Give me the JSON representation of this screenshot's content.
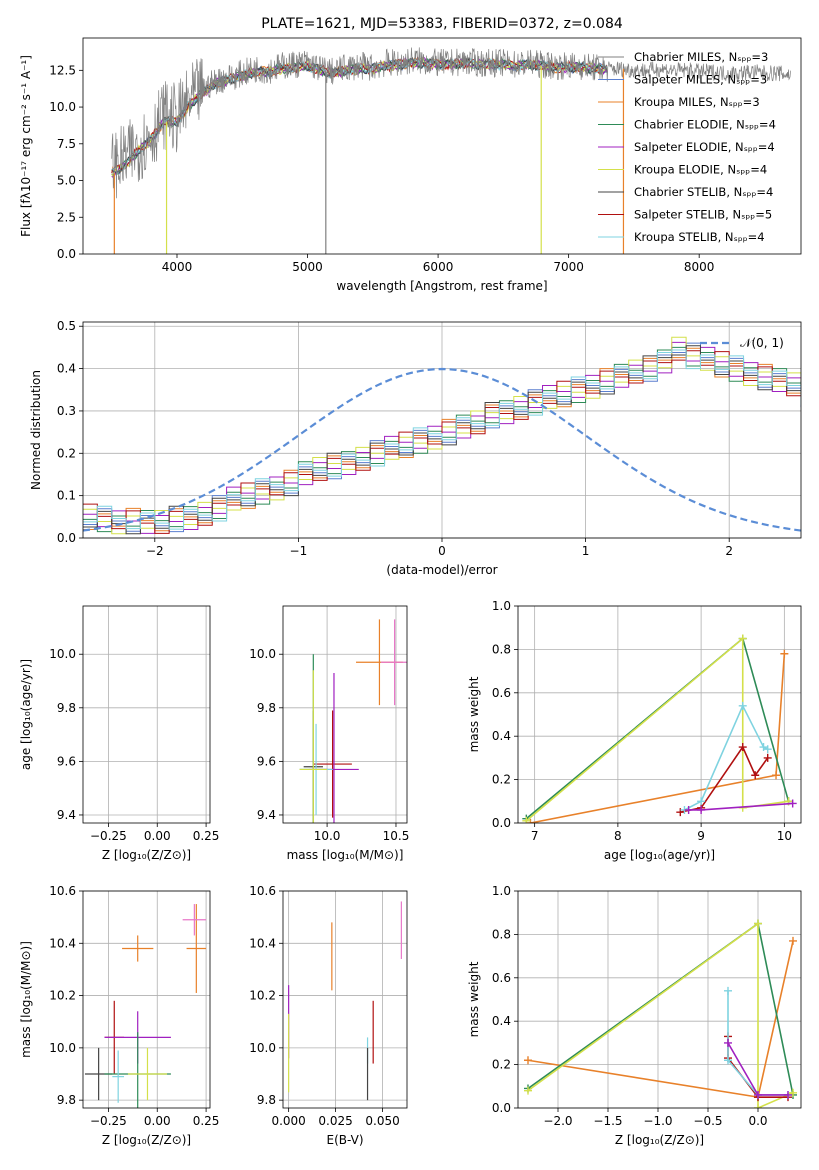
{
  "colors": {
    "grey": "#808080",
    "blue": "#5b7fcf",
    "orange": "#e8812a",
    "green": "#2e8b57",
    "purple": "#a020c0",
    "yellow": "#d4e04a",
    "dark": "#444444",
    "red": "#b01010",
    "cyan": "#7fd3e0",
    "pink": "#e877c8",
    "gauss": "#5b8dd6"
  },
  "spectrum": {
    "title": "PLATE=1621, MJD=53383, FIBERID=0372, z=0.084",
    "xlabel": "wavelength [Angstrom, rest frame]",
    "ylabel": "Flux [fλ10⁻¹⁷ erg cm⁻² s⁻¹ A⁻¹]",
    "xticks": [
      "4000",
      "5000",
      "6000",
      "7000",
      "8000"
    ],
    "yticks": [
      "0.0",
      "2.5",
      "5.0",
      "7.5",
      "10.0",
      "12.5"
    ],
    "legend": [
      {
        "label": "Chabrier MILES, Nₛₚₚ=3",
        "color": "grey"
      },
      {
        "label": "Salpeter MILES, Nₛₚₚ=3",
        "color": "blue"
      },
      {
        "label": "Kroupa MILES, Nₛₚₚ=3",
        "color": "orange"
      },
      {
        "label": "Chabrier ELODIE, Nₛₚₚ=4",
        "color": "green"
      },
      {
        "label": "Salpeter ELODIE, Nₛₚₚ=4",
        "color": "purple"
      },
      {
        "label": "Kroupa ELODIE, Nₛₚₚ=4",
        "color": "yellow"
      },
      {
        "label": "Chabrier STELIB, Nₛₚₚ=4",
        "color": "dark"
      },
      {
        "label": "Salpeter STELIB, Nₛₚₚ=5",
        "color": "red"
      },
      {
        "label": "Kroupa STELIB, Nₛₚₚ=4",
        "color": "cyan"
      }
    ]
  },
  "hist": {
    "xlabel": "(data-model)/error",
    "ylabel": "Normed distribution",
    "xticks": [
      "−2",
      "−1",
      "0",
      "1",
      "2"
    ],
    "yticks": [
      "0.0",
      "0.1",
      "0.2",
      "0.3",
      "0.4",
      "0.5"
    ],
    "legend": "𝒩(0, 1)"
  },
  "panels": {
    "p3": {
      "xlabel": "Z [log₁₀(Z/Z⊙)]",
      "ylabel": "age  [log₁₀(age/yr)]",
      "xticks": [
        "−0.25",
        "0.00",
        "0.25"
      ],
      "yticks": [
        "9.4",
        "9.6",
        "9.8",
        "10.0"
      ]
    },
    "p4": {
      "xlabel": "mass [log₁₀(M/M⊙)]",
      "xticks": [
        "10.0",
        "10.5"
      ],
      "yticks": [
        "9.4",
        "9.6",
        "9.8",
        "10.0"
      ]
    },
    "p5": {
      "xlabel": "age  [log₁₀(age/yr)]",
      "ylabel": "mass weight",
      "xticks": [
        "7",
        "8",
        "9",
        "10"
      ],
      "yticks": [
        "0.0",
        "0.2",
        "0.4",
        "0.6",
        "0.8",
        "1.0"
      ]
    },
    "p6": {
      "xlabel": "Z [log₁₀(Z/Z⊙)]",
      "ylabel": "mass [log₁₀(M/M⊙)]",
      "xticks": [
        "−0.25",
        "0.00",
        "0.25"
      ],
      "yticks": [
        "9.8",
        "10.0",
        "10.2",
        "10.4",
        "10.6"
      ]
    },
    "p7": {
      "xlabel": "E(B-V)",
      "xticks": [
        "0.000",
        "0.025",
        "0.050"
      ],
      "yticks": [
        "9.8",
        "10.0",
        "10.2",
        "10.4",
        "10.6"
      ]
    },
    "p8": {
      "xlabel": "Z [log₁₀(Z/Z⊙)]",
      "ylabel": "mass weight",
      "xticks": [
        "−2.0",
        "−1.5",
        "−1.0",
        "−0.5",
        "0.0"
      ],
      "yticks": [
        "0.0",
        "0.2",
        "0.4",
        "0.6",
        "0.8",
        "1.0"
      ]
    }
  },
  "chart_data": [
    {
      "type": "line",
      "title": "PLATE=1621, MJD=53383, FIBERID=0372, z=0.084",
      "xlabel": "wavelength [Angstrom, rest frame]",
      "xlim": [
        3280,
        8780
      ],
      "ylim": [
        0,
        14.7
      ],
      "x": [
        3500,
        3600,
        3700,
        3800,
        3900,
        4000,
        4100,
        4200,
        4300,
        4400,
        4500,
        4600,
        4700,
        4800,
        4900,
        5000,
        5100,
        5200,
        5300,
        5400,
        5500,
        5600,
        5700,
        5800,
        5900,
        6000,
        6100,
        6200,
        6300,
        6400,
        6500,
        6600,
        6700,
        6800,
        6900,
        7000,
        7100,
        7200,
        7300,
        7400,
        7500,
        7600,
        7700,
        7800,
        7900,
        8000,
        8100,
        8200,
        8300,
        8400,
        8500,
        8600,
        8700
      ],
      "series": [
        {
          "name": "data",
          "color": "grey",
          "values": [
            6.0,
            6.5,
            7.2,
            8.0,
            9.5,
            9.2,
            10.5,
            11.2,
            11.8,
            12.0,
            12.3,
            12.6,
            12.5,
            12.8,
            12.9,
            13.0,
            12.6,
            12.4,
            12.7,
            12.8,
            12.7,
            13.0,
            13.0,
            13.2,
            13.1,
            13.0,
            13.0,
            13.1,
            13.0,
            13.0,
            13.0,
            12.9,
            13.0,
            12.9,
            12.8,
            12.8,
            12.8,
            12.7,
            12.6,
            12.6,
            12.5,
            12.5,
            12.6,
            12.5,
            12.5,
            12.4,
            12.4,
            12.3,
            12.3,
            12.4,
            12.3,
            12.3,
            12.2
          ]
        },
        {
          "name": "model",
          "color": "cyan",
          "values": [
            5.5,
            6.0,
            7.0,
            7.8,
            9.0,
            9.0,
            10.2,
            11.0,
            11.6,
            11.9,
            12.1,
            12.4,
            12.4,
            12.6,
            12.7,
            12.8,
            12.5,
            12.3,
            12.5,
            12.6,
            12.6,
            12.8,
            12.9,
            13.0,
            13.0,
            12.9,
            12.9,
            13.0,
            12.9,
            12.9,
            12.9,
            12.8,
            12.9,
            12.8,
            12.7,
            12.7,
            12.7,
            12.6,
            12.6,
            null,
            null,
            null,
            null,
            null,
            null,
            null,
            null,
            null,
            null,
            null,
            null,
            null,
            null
          ]
        }
      ]
    },
    {
      "type": "bar",
      "xlabel": "(data-model)/error",
      "ylabel": "Normed distribution",
      "xlim": [
        -2.5,
        2.5
      ],
      "ylim": [
        0,
        0.51
      ],
      "bin_width": 0.1,
      "bin_start": -2.5,
      "values": [
        0.05,
        0.045,
        0.04,
        0.04,
        0.035,
        0.035,
        0.045,
        0.05,
        0.06,
        0.07,
        0.09,
        0.1,
        0.11,
        0.12,
        0.13,
        0.15,
        0.16,
        0.17,
        0.18,
        0.19,
        0.2,
        0.21,
        0.22,
        0.23,
        0.24,
        0.25,
        0.26,
        0.27,
        0.29,
        0.3,
        0.31,
        0.32,
        0.33,
        0.34,
        0.35,
        0.36,
        0.37,
        0.38,
        0.39,
        0.4,
        0.42,
        0.45,
        0.43,
        0.42,
        0.41,
        0.4,
        0.39,
        0.38,
        0.37,
        0.36,
        0.34,
        0.32,
        0.3,
        0.29,
        0.27,
        0.26,
        0.24,
        0.23,
        0.21,
        0.2,
        0.19,
        0.17,
        0.16,
        0.15,
        0.14,
        0.13,
        0.12,
        0.11,
        0.1,
        0.09,
        0.08,
        0.075,
        0.07,
        0.065,
        0.06,
        0.055,
        0.05,
        0.05,
        0.045,
        0.045,
        0.04,
        0.04,
        0.04,
        0.035,
        0.035,
        0.035,
        0.03,
        0.03,
        0.03,
        0.03,
        0.03,
        0.03,
        0.03,
        0.03,
        0.03,
        0.03,
        0.03,
        0.03,
        0.03,
        0.03
      ],
      "gaussian": {
        "mean": 0,
        "sigma": 1,
        "name": "𝒩(0, 1)"
      }
    },
    {
      "type": "scatter",
      "xlabel": "Z [log₁₀(Z/Z⊙)]",
      "ylabel": "age  [log₁₀(age/yr)]",
      "xlim": [
        -0.38,
        0.27
      ],
      "ylim": [
        9.37,
        10.18
      ],
      "points": [
        {
          "x": 0.2,
          "y": 9.97,
          "xerr": 0.04,
          "yerr": 0.13,
          "color": "orange"
        },
        {
          "x": 0.19,
          "y": 9.97,
          "xerr": 0.03,
          "yerr": 0.1,
          "color": "pink"
        },
        {
          "x": -0.22,
          "y": 9.59,
          "xerr": 0.04,
          "yerr": 0.21,
          "color": "red"
        },
        {
          "x": -0.2,
          "y": 9.58,
          "xerr": 0.06,
          "yerr": 0.2,
          "color": "dark"
        },
        {
          "x": 0.0,
          "y": 9.57,
          "xerr": 0.07,
          "yerr": 0.43,
          "color": "green"
        },
        {
          "x": -0.02,
          "y": 9.57,
          "xerr": 0.36,
          "yerr": 0.1,
          "color": "yellow"
        },
        {
          "x": -0.23,
          "y": 9.57,
          "xerr": 0.05,
          "yerr": 0.17,
          "color": "cyan"
        },
        {
          "x": 0.0,
          "y": 9.57,
          "xerr": 0.05,
          "yerr": 0.37,
          "color": "purple"
        }
      ]
    },
    {
      "type": "scatter",
      "xlabel": "mass [log₁₀(M/M⊙)]",
      "xlim": [
        9.68,
        10.58
      ],
      "ylim": [
        9.37,
        10.18
      ],
      "points": [
        {
          "x": 10.38,
          "y": 9.97,
          "xerr": 0.17,
          "yerr": 0.16,
          "color": "orange"
        },
        {
          "x": 10.49,
          "y": 9.97,
          "xerr": 0.1,
          "yerr": 0.16,
          "color": "pink"
        },
        {
          "x": 10.04,
          "y": 9.59,
          "xerr": 0.14,
          "yerr": 0.2,
          "color": "red"
        },
        {
          "x": 9.9,
          "y": 9.58,
          "xerr": 0.07,
          "yerr": 0.21,
          "color": "dark"
        },
        {
          "x": 9.9,
          "y": 9.57,
          "xerr": 0.1,
          "yerr": 0.43,
          "color": "green"
        },
        {
          "x": 10.05,
          "y": 9.57,
          "xerr": 0.18,
          "yerr": 0.36,
          "color": "purple"
        },
        {
          "x": 9.92,
          "y": 9.57,
          "xerr": 0.12,
          "yerr": 0.17,
          "color": "cyan"
        },
        {
          "x": 9.9,
          "y": 9.57,
          "xerr": 0.1,
          "yerr": 0.37,
          "color": "yellow"
        }
      ]
    },
    {
      "type": "line",
      "xlabel": "age  [log₁₀(age/yr)]",
      "ylabel": "mass weight",
      "xlim": [
        6.8,
        10.2
      ],
      "ylim": [
        0,
        1.0
      ],
      "series": [
        {
          "name": "",
          "color": "orange",
          "x": [
            6.95,
            9.9,
            10.0
          ],
          "y": [
            0.0,
            0.22,
            0.78
          ]
        },
        {
          "name": "",
          "color": "green",
          "x": [
            6.9,
            9.5,
            10.05
          ],
          "y": [
            0.02,
            0.85,
            0.1
          ]
        },
        {
          "name": "",
          "color": "yellow",
          "x": [
            6.9,
            9.5,
            9.5,
            10.05
          ],
          "y": [
            0.01,
            0.85,
            0.07,
            0.1
          ]
        },
        {
          "name": "",
          "color": "red",
          "x": [
            8.75,
            9.0,
            9.5,
            9.65,
            9.8
          ],
          "y": [
            0.05,
            0.07,
            0.35,
            0.22,
            0.3
          ]
        },
        {
          "name": "",
          "color": "cyan",
          "x": [
            8.8,
            9.0,
            9.5,
            9.75,
            9.8
          ],
          "y": [
            0.06,
            0.1,
            0.54,
            0.35,
            0.34
          ]
        },
        {
          "name": "",
          "color": "purple",
          "x": [
            8.85,
            9.0,
            10.1
          ],
          "y": [
            0.06,
            0.06,
            0.09
          ]
        }
      ]
    },
    {
      "type": "scatter",
      "xlabel": "Z [log₁₀(Z/Z⊙)]",
      "ylabel": "mass [log₁₀(M/M⊙)]",
      "xlim": [
        -0.38,
        0.27
      ],
      "ylim": [
        9.77,
        10.6
      ],
      "points": [
        {
          "x": 0.2,
          "y": 10.38,
          "xerr": 0.05,
          "yerr": 0.17,
          "color": "orange"
        },
        {
          "x": 0.19,
          "y": 10.49,
          "xerr": 0.06,
          "yerr": 0.06,
          "color": "pink"
        },
        {
          "x": -0.1,
          "y": 10.38,
          "xerr": 0.08,
          "yerr": 0.05,
          "color": "orange"
        },
        {
          "x": -0.22,
          "y": 10.04,
          "xerr": 0.05,
          "yerr": 0.14,
          "color": "red"
        },
        {
          "x": -0.1,
          "y": 10.04,
          "xerr": 0.17,
          "yerr": 0.1,
          "color": "purple"
        },
        {
          "x": -0.3,
          "y": 9.9,
          "xerr": 0.07,
          "yerr": 0.1,
          "color": "dark"
        },
        {
          "x": -0.1,
          "y": 9.9,
          "xerr": 0.17,
          "yerr": 0.16,
          "color": "green"
        },
        {
          "x": -0.05,
          "y": 9.9,
          "xerr": 0.1,
          "yerr": 0.1,
          "color": "yellow"
        },
        {
          "x": -0.2,
          "y": 9.89,
          "xerr": 0.03,
          "yerr": 0.1,
          "color": "cyan"
        }
      ]
    },
    {
      "type": "scatter",
      "xlabel": "E(B-V)",
      "xlim": [
        -0.003,
        0.063
      ],
      "ylim": [
        9.77,
        10.6
      ],
      "points": [
        {
          "x": 0.0,
          "y": 10.1,
          "yerr": 0.14,
          "color": "purple"
        },
        {
          "x": 0.0,
          "y": 9.98,
          "yerr": 0.15,
          "color": "yellow"
        },
        {
          "x": 0.023,
          "y": 10.35,
          "yerr": 0.13,
          "color": "orange"
        },
        {
          "x": 0.042,
          "y": 9.99,
          "yerr": 0.05,
          "color": "cyan"
        },
        {
          "x": 0.042,
          "y": 9.9,
          "yerr": 0.1,
          "color": "dark"
        },
        {
          "x": 0.045,
          "y": 10.06,
          "yerr": 0.12,
          "color": "red"
        },
        {
          "x": 0.06,
          "y": 10.45,
          "yerr": 0.11,
          "color": "pink"
        }
      ]
    },
    {
      "type": "line",
      "xlabel": "Z [log₁₀(Z/Z⊙)]",
      "ylabel": "mass weight",
      "xlim": [
        -2.4,
        0.43
      ],
      "ylim": [
        0,
        1.0
      ],
      "series": [
        {
          "name": "",
          "color": "orange",
          "x": [
            -2.3,
            0.0,
            0.35
          ],
          "y": [
            0.22,
            0.05,
            0.77
          ]
        },
        {
          "name": "",
          "color": "green",
          "x": [
            -2.3,
            0.0,
            0.35
          ],
          "y": [
            0.09,
            0.85,
            0.06
          ]
        },
        {
          "name": "",
          "color": "yellow",
          "x": [
            -2.3,
            0.0,
            0.0,
            0.35
          ],
          "y": [
            0.08,
            0.85,
            0.0,
            0.07
          ]
        },
        {
          "name": "",
          "color": "red",
          "x": [
            -0.3,
            -0.3,
            0.0,
            0.3
          ],
          "y": [
            0.33,
            0.23,
            0.05,
            0.05
          ]
        },
        {
          "name": "",
          "color": "cyan",
          "x": [
            -0.3,
            -0.3,
            0.0,
            0.3
          ],
          "y": [
            0.54,
            0.22,
            0.06,
            0.06
          ]
        },
        {
          "name": "",
          "color": "purple",
          "x": [
            -0.3,
            0.0,
            0.3
          ],
          "y": [
            0.3,
            0.06,
            0.06
          ]
        }
      ]
    }
  ]
}
